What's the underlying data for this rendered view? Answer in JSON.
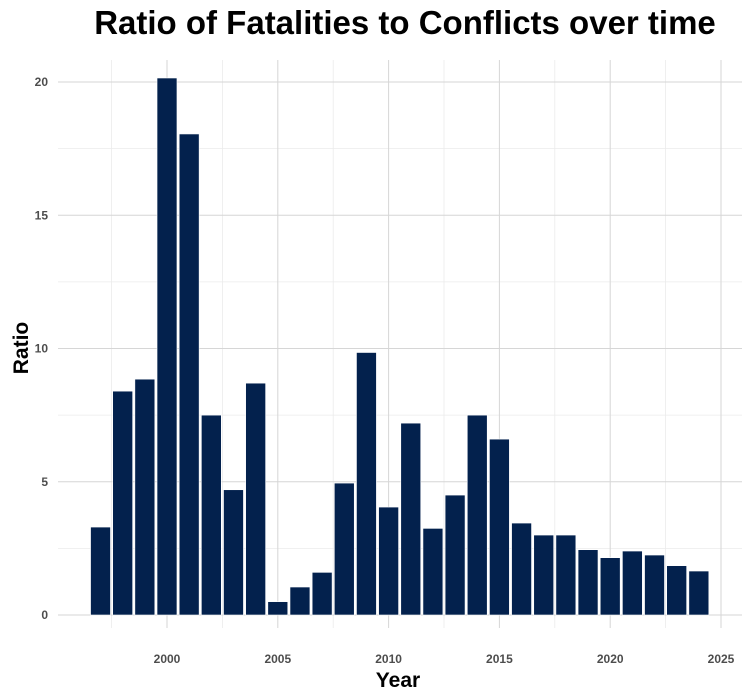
{
  "chart_data": {
    "type": "bar",
    "title": "Ratio of Fatalities to Conflicts over time",
    "xlabel": "Year",
    "ylabel": "Ratio",
    "x": [
      1997,
      1998,
      1999,
      2000,
      2001,
      2002,
      2003,
      2004,
      2005,
      2006,
      2007,
      2008,
      2009,
      2010,
      2011,
      2012,
      2013,
      2014,
      2015,
      2016,
      2017,
      2018,
      2019,
      2020,
      2021,
      2022,
      2023,
      2024
    ],
    "values": [
      3.3,
      8.4,
      8.85,
      20.15,
      18.05,
      7.5,
      4.7,
      8.7,
      0.5,
      1.05,
      1.6,
      4.95,
      9.85,
      4.05,
      7.2,
      3.25,
      4.5,
      7.5,
      6.6,
      3.45,
      3.0,
      3.0,
      2.45,
      2.15,
      2.4,
      2.25,
      1.85,
      1.65
    ],
    "xlim": [
      1996.1,
      2025.6
    ],
    "ylim": [
      0,
      20.15
    ],
    "x_ticks": [
      2000,
      2005,
      2010,
      2015,
      2020,
      2025
    ],
    "y_ticks": [
      0,
      5,
      10,
      15,
      20
    ],
    "bar_color": "#03214d",
    "grid": true,
    "legend": "none"
  }
}
